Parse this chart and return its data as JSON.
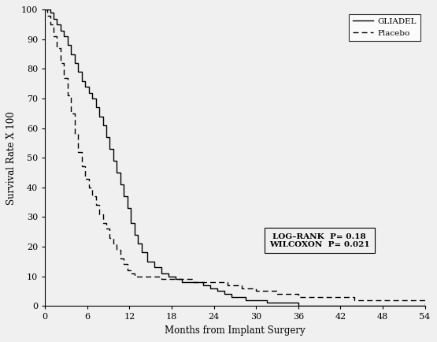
{
  "title": "",
  "xlabel": "Months from Implant Surgery",
  "ylabel": "Survival Rate X 100",
  "xlim": [
    0,
    54
  ],
  "ylim": [
    0,
    100
  ],
  "xticks": [
    0,
    6,
    12,
    18,
    24,
    30,
    36,
    42,
    48,
    54
  ],
  "yticks": [
    0,
    10,
    20,
    30,
    40,
    50,
    60,
    70,
    80,
    90,
    100
  ],
  "gliadel_x": [
    0,
    0.3,
    0.7,
    1.2,
    1.7,
    2.2,
    2.7,
    3.2,
    3.7,
    4.2,
    4.7,
    5.2,
    5.7,
    6.2,
    6.7,
    7.2,
    7.7,
    8.2,
    8.7,
    9.2,
    9.7,
    10.2,
    10.7,
    11.2,
    11.7,
    12.2,
    12.7,
    13.2,
    13.7,
    14.5,
    15.5,
    16.5,
    17.5,
    18.5,
    19.5,
    20.5,
    21.5,
    22.5,
    23.5,
    24.5,
    25.5,
    26.5,
    27.5,
    28.5,
    29.5,
    30.5,
    31.5,
    33.0,
    36.0,
    54.0
  ],
  "gliadel_y": [
    100,
    100,
    99,
    97,
    95,
    93,
    91,
    88,
    85,
    82,
    79,
    76,
    74,
    72,
    70,
    67,
    64,
    61,
    57,
    53,
    49,
    45,
    41,
    37,
    33,
    28,
    24,
    21,
    18,
    15,
    13,
    11,
    10,
    9,
    8,
    8,
    8,
    7,
    6,
    5,
    4,
    3,
    3,
    2,
    2,
    2,
    1,
    1,
    0,
    0
  ],
  "placebo_x": [
    0,
    0.3,
    0.7,
    1.2,
    1.7,
    2.2,
    2.7,
    3.2,
    3.7,
    4.2,
    4.7,
    5.2,
    5.7,
    6.2,
    6.7,
    7.2,
    7.7,
    8.2,
    8.7,
    9.2,
    9.7,
    10.2,
    10.7,
    11.2,
    11.7,
    12.2,
    12.7,
    13.5,
    14.5,
    15.5,
    16.5,
    18.0,
    19.0,
    20.0,
    21.0,
    22.0,
    23.0,
    24.0,
    25.0,
    26.0,
    27.0,
    28.0,
    29.0,
    30.0,
    31.0,
    32.0,
    33.0,
    34.0,
    36.0,
    38.0,
    40.0,
    42.0,
    44.0,
    48.0,
    54.0
  ],
  "placebo_y": [
    100,
    98,
    95,
    91,
    87,
    82,
    77,
    71,
    65,
    58,
    52,
    47,
    43,
    40,
    37,
    34,
    31,
    28,
    26,
    23,
    21,
    19,
    16,
    14,
    12,
    11,
    10,
    10,
    10,
    10,
    9,
    9,
    9,
    9,
    8,
    8,
    8,
    8,
    8,
    7,
    7,
    6,
    6,
    5,
    5,
    5,
    4,
    4,
    3,
    3,
    3,
    3,
    2,
    2,
    0
  ],
  "gliadel_color": "#000000",
  "placebo_color": "#000000",
  "background_color": "#f0f0f0",
  "legend_gliadel": "GLIADEL",
  "legend_placebo": "Placebo",
  "annotation_line1": "LOG–RANK  P= 0.18",
  "annotation_line2": "WILCOXON  P= 0.021"
}
